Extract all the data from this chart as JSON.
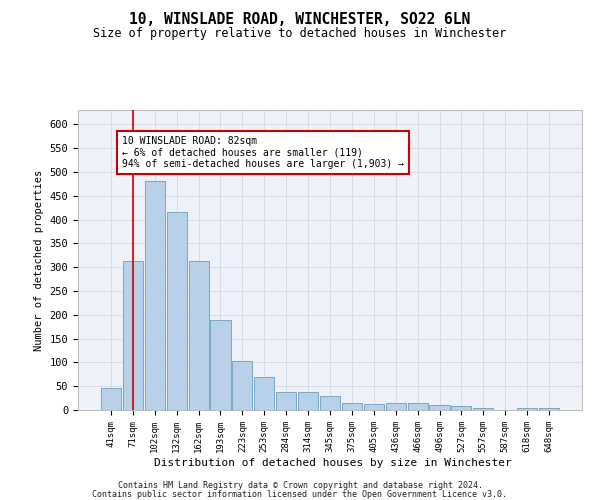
{
  "title": "10, WINSLADE ROAD, WINCHESTER, SO22 6LN",
  "subtitle": "Size of property relative to detached houses in Winchester",
  "xlabel": "Distribution of detached houses by size in Winchester",
  "ylabel": "Number of detached properties",
  "bar_color": "#b8d0e8",
  "bar_edge_color": "#6a9ec0",
  "grid_color": "#d4dce8",
  "background_color": "#eef2f8",
  "categories": [
    "41sqm",
    "71sqm",
    "102sqm",
    "132sqm",
    "162sqm",
    "193sqm",
    "223sqm",
    "253sqm",
    "284sqm",
    "314sqm",
    "345sqm",
    "375sqm",
    "405sqm",
    "436sqm",
    "466sqm",
    "496sqm",
    "527sqm",
    "557sqm",
    "587sqm",
    "618sqm",
    "648sqm"
  ],
  "values": [
    46,
    312,
    480,
    415,
    312,
    190,
    103,
    70,
    38,
    38,
    30,
    14,
    12,
    14,
    14,
    10,
    8,
    5,
    0,
    5,
    5
  ],
  "ylim": [
    0,
    630
  ],
  "yticks": [
    0,
    50,
    100,
    150,
    200,
    250,
    300,
    350,
    400,
    450,
    500,
    550,
    600
  ],
  "vline_x": 1.0,
  "annotation_text": "10 WINSLADE ROAD: 82sqm\n← 6% of detached houses are smaller (119)\n94% of semi-detached houses are larger (1,903) →",
  "annotation_box_color": "#ffffff",
  "annotation_box_edge": "#cc0000",
  "vline_color": "#cc0000",
  "footer_line1": "Contains HM Land Registry data © Crown copyright and database right 2024.",
  "footer_line2": "Contains public sector information licensed under the Open Government Licence v3.0."
}
